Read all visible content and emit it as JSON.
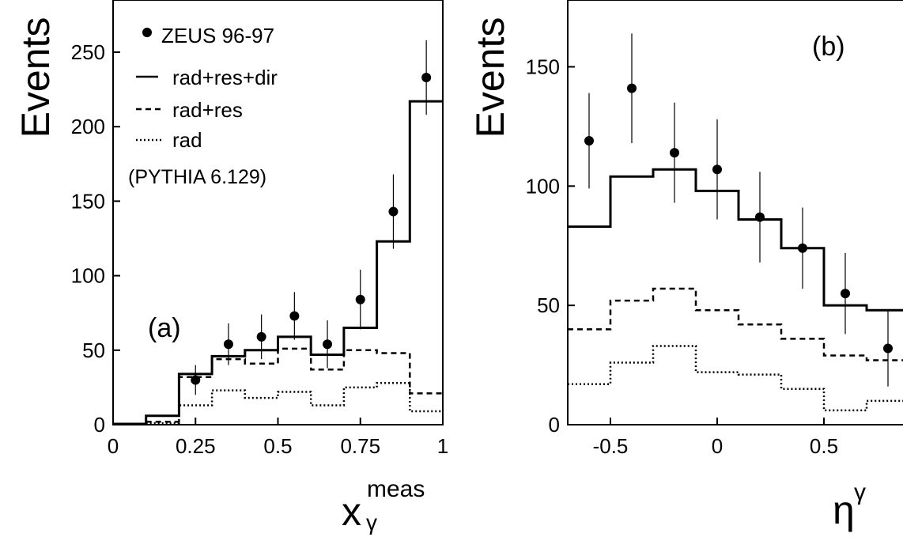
{
  "chart_data": [
    {
      "type": "scatter",
      "panel_label": "(a)",
      "xlabel_main": "x",
      "xlabel_sub": "γ",
      "xlabel_sup": "meas",
      "ylabel": "Events",
      "xlim": [
        0,
        1
      ],
      "ylim": [
        0,
        285
      ],
      "x_ticks": [
        0,
        0.25,
        0.5,
        0.75,
        1
      ],
      "x_tick_labels": [
        "0",
        "0.25",
        "0.5",
        "0.75",
        "1"
      ],
      "y_ticks": [
        0,
        50,
        100,
        150,
        200,
        250
      ],
      "y_tick_labels": [
        "0",
        "50",
        "100",
        "150",
        "200",
        "250"
      ],
      "legend": {
        "placement": "top-left",
        "entries": [
          {
            "label": "ZEUS 96-97",
            "style": "marker"
          },
          {
            "label": "rad+res+dir",
            "style": "solid"
          },
          {
            "label": "rad+res",
            "style": "dashed"
          },
          {
            "label": "rad",
            "style": "dotted"
          }
        ],
        "note": "(PYTHIA 6.129)"
      },
      "data": {
        "name": "ZEUS 96-97",
        "x": [
          0.25,
          0.35,
          0.45,
          0.55,
          0.65,
          0.75,
          0.85,
          0.95
        ],
        "y": [
          30,
          54,
          59,
          73,
          54,
          84,
          143,
          233
        ],
        "yerr": [
          10,
          14,
          15,
          16,
          16,
          20,
          25,
          25
        ]
      },
      "histograms": [
        {
          "name": "rad+res+dir",
          "style": "solid",
          "edges": [
            0,
            0.1,
            0.2,
            0.3,
            0.4,
            0.5,
            0.6,
            0.7,
            0.8,
            0.9,
            1.0
          ],
          "values": [
            0.5,
            6,
            34,
            46,
            50,
            59,
            47,
            65,
            123,
            217
          ]
        },
        {
          "name": "rad+res",
          "style": "dashed",
          "edges": [
            0.1,
            0.2,
            0.3,
            0.4,
            0.5,
            0.6,
            0.7,
            0.8,
            0.9,
            1.0
          ],
          "values": [
            2,
            32,
            44,
            41,
            51,
            37,
            50,
            48,
            21
          ]
        },
        {
          "name": "rad",
          "style": "dotted",
          "edges": [
            0.1,
            0.2,
            0.3,
            0.4,
            0.5,
            0.6,
            0.7,
            0.8,
            0.9,
            1.0
          ],
          "values": [
            1,
            13,
            23,
            18,
            22,
            13,
            25,
            28,
            9
          ]
        }
      ]
    },
    {
      "type": "scatter",
      "panel_label": "(b)",
      "xlabel_main": "η",
      "xlabel_sup": "γ",
      "ylabel": "Events",
      "xlim": [
        -0.7,
        0.9
      ],
      "ylim": [
        0,
        178
      ],
      "x_ticks": [
        -0.5,
        0,
        0.5
      ],
      "x_tick_labels": [
        "-0.5",
        "0",
        "0.5"
      ],
      "y_ticks": [
        0,
        50,
        100,
        150
      ],
      "y_tick_labels": [
        "0",
        "50",
        "100",
        "150"
      ],
      "data": {
        "name": "ZEUS 96-97",
        "x": [
          -0.6,
          -0.4,
          -0.2,
          0.0,
          0.2,
          0.4,
          0.6,
          0.8
        ],
        "y": [
          119,
          141,
          114,
          107,
          87,
          74,
          55,
          32
        ],
        "yerr": [
          20,
          23,
          21,
          21,
          19,
          17,
          17,
          16
        ]
      },
      "histograms": [
        {
          "name": "rad+res+dir",
          "style": "solid",
          "edges": [
            -0.7,
            -0.5,
            -0.3,
            -0.1,
            0.1,
            0.3,
            0.5,
            0.7,
            0.9
          ],
          "values": [
            83,
            104,
            107,
            98,
            86,
            74,
            50,
            48
          ]
        },
        {
          "name": "rad+res",
          "style": "dashed",
          "edges": [
            -0.7,
            -0.5,
            -0.3,
            -0.1,
            0.1,
            0.3,
            0.5,
            0.7,
            0.9
          ],
          "values": [
            40,
            52,
            57,
            48,
            42,
            36,
            29,
            27
          ]
        },
        {
          "name": "rad",
          "style": "dotted",
          "edges": [
            -0.7,
            -0.5,
            -0.3,
            -0.1,
            0.1,
            0.3,
            0.5,
            0.7,
            0.9
          ],
          "values": [
            17,
            26,
            33,
            22,
            21,
            15,
            6,
            10
          ]
        }
      ]
    }
  ]
}
